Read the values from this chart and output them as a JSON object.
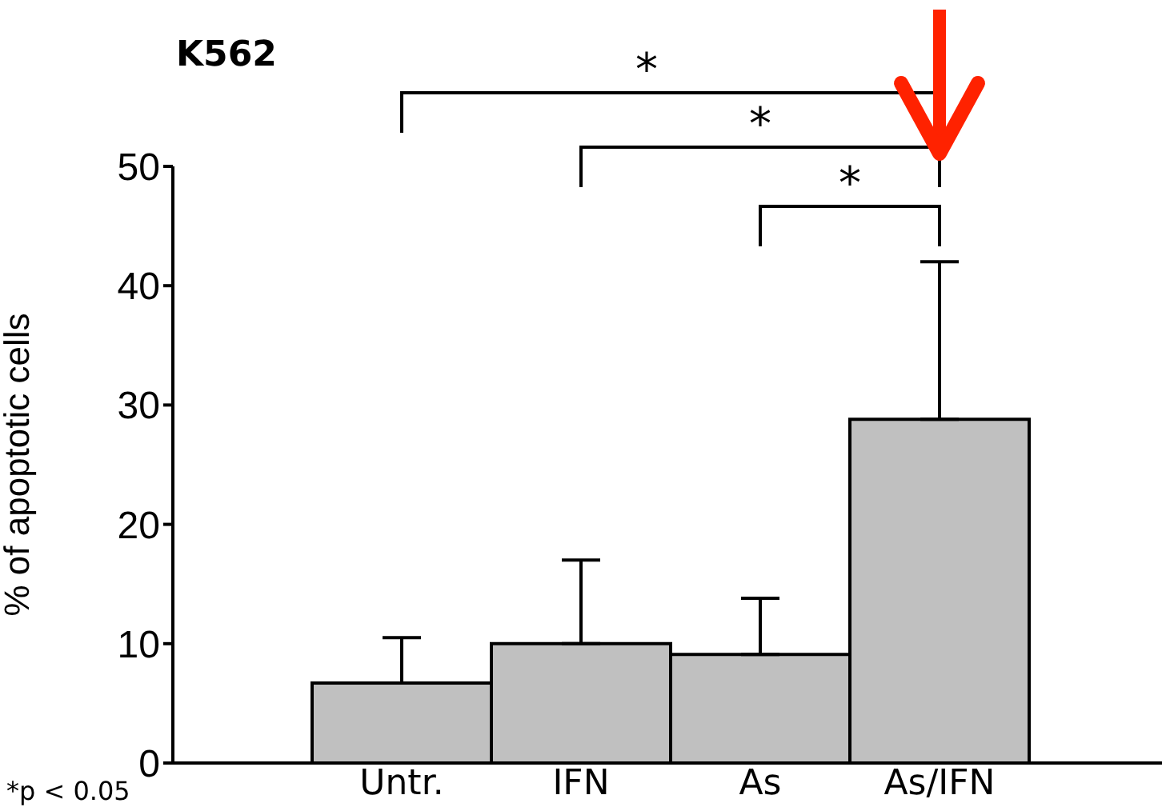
{
  "chart_data": {
    "type": "bar",
    "title": "K562",
    "ylabel": "% of apoptotic cells",
    "categories": [
      "Untr.",
      "IFN",
      "As",
      "As/IFN"
    ],
    "values": [
      6.7,
      10.0,
      9.1,
      28.8
    ],
    "errors": [
      [
        6.7,
        10.5
      ],
      [
        10.0,
        17.0
      ],
      [
        9.1,
        13.8
      ],
      [
        28.8,
        42.0
      ]
    ],
    "color": "#c0c0c0",
    "ylim": [
      0,
      50
    ],
    "yticks": [
      0,
      10,
      20,
      30,
      40,
      50
    ],
    "grid": false,
    "legend": false,
    "annotations": [
      "*",
      "*",
      "*",
      "*p < 0.05"
    ]
  }
}
